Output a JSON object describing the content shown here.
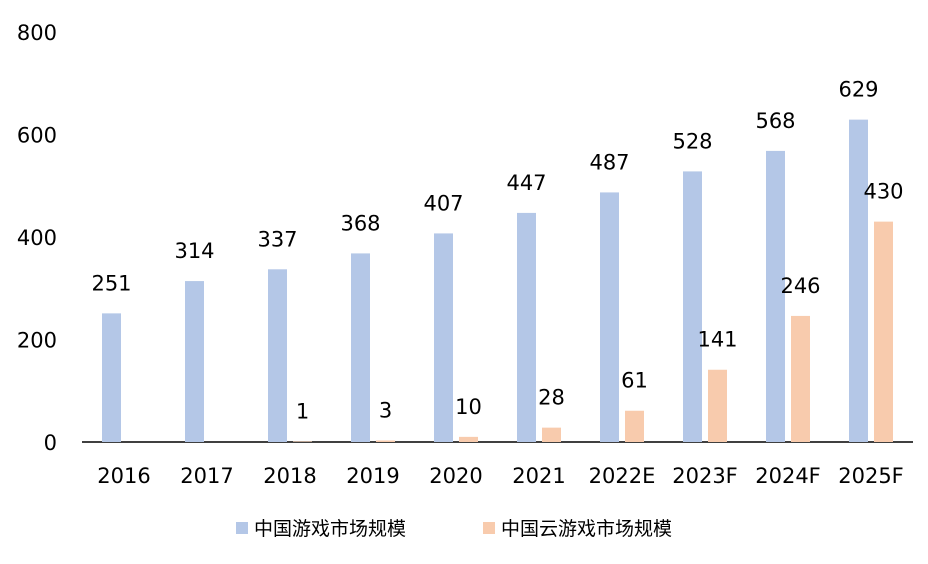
{
  "chart_data": {
    "type": "bar",
    "categories": [
      "2016",
      "2017",
      "2018",
      "2019",
      "2020",
      "2021",
      "2022E",
      "2023F",
      "2024F",
      "2025F"
    ],
    "series": [
      {
        "name": "中国游戏市场规模",
        "color": "#b4c7e7",
        "values": [
          251,
          314,
          337,
          368,
          407,
          447,
          487,
          528,
          568,
          629
        ]
      },
      {
        "name": "中国云游戏市场规模",
        "color": "#f8cbad",
        "values": [
          null,
          null,
          1,
          3,
          10,
          28,
          61,
          141,
          246,
          430
        ]
      }
    ],
    "ylim": [
      0,
      800
    ],
    "yticks": [
      0,
      200,
      400,
      600,
      800
    ],
    "grid": false,
    "legend": "bottom",
    "title": "",
    "xlabel": "",
    "ylabel": ""
  }
}
